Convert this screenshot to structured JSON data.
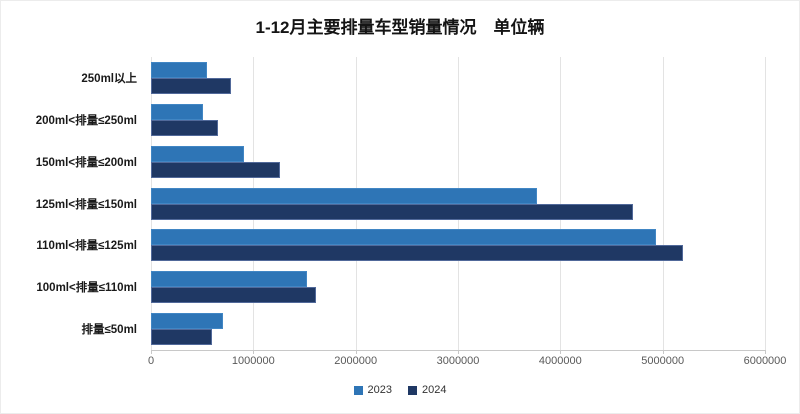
{
  "chart_data": {
    "type": "bar",
    "orientation": "horizontal",
    "title": "1-12月主要排量车型销量情况　单位辆",
    "categories": [
      "250ml以上",
      "200ml<排量≤250ml",
      "150ml<排量≤200ml",
      "125ml<排量≤150ml",
      "110ml<排量≤125ml",
      "100ml<排量≤110ml",
      "排量≤50ml"
    ],
    "series": [
      {
        "name": "2023",
        "color": "#2E75B6",
        "values": [
          550000,
          510000,
          910000,
          3770000,
          4930000,
          1520000,
          700000
        ]
      },
      {
        "name": "2024",
        "color": "#1F3864",
        "values": [
          780000,
          650000,
          1260000,
          4710000,
          5200000,
          1610000,
          600000
        ]
      }
    ],
    "xlim": [
      0,
      6000000
    ],
    "x_ticks": [
      "0",
      "1000000",
      "2000000",
      "3000000",
      "4000000",
      "5000000",
      "6000000"
    ],
    "grid": "vertical-only",
    "legend_position": "bottom",
    "colors": {
      "series_2023": "#2E75B6",
      "series_2024": "#1F3864",
      "gridline": "#e3e3e3",
      "axis_line": "#c8c8c8",
      "tick_label": "#595959",
      "category_label": "#1a1a1a",
      "title": "#141414",
      "background": "#ffffff"
    }
  }
}
